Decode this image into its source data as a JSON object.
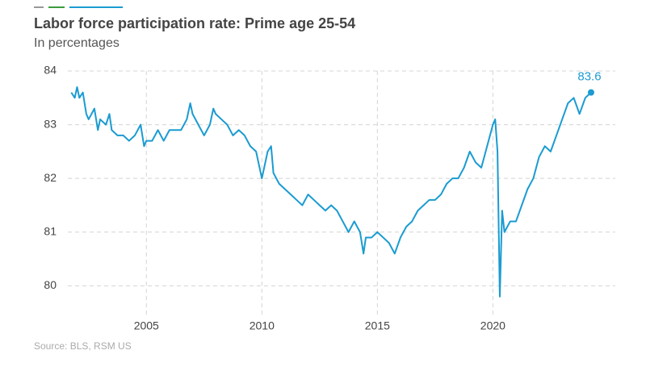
{
  "chart_data": {
    "type": "line",
    "title": "Labor force participation rate: Prime age 25-54",
    "subtitle": "In percentages",
    "source": "Source: BLS, RSM US",
    "x": [
      2001.75,
      2001.9,
      2002.0,
      2002.1,
      2002.25,
      2002.4,
      2002.5,
      2002.75,
      2002.9,
      2003.0,
      2003.25,
      2003.4,
      2003.5,
      2003.75,
      2004.0,
      2004.25,
      2004.5,
      2004.75,
      2004.9,
      2005.0,
      2005.25,
      2005.5,
      2005.75,
      2006.0,
      2006.25,
      2006.5,
      2006.75,
      2006.9,
      2007.0,
      2007.25,
      2007.5,
      2007.75,
      2007.9,
      2008.0,
      2008.25,
      2008.5,
      2008.75,
      2009.0,
      2009.25,
      2009.5,
      2009.75,
      2010.0,
      2010.25,
      2010.4,
      2010.5,
      2010.75,
      2011.0,
      2011.25,
      2011.5,
      2011.75,
      2012.0,
      2012.25,
      2012.5,
      2012.75,
      2013.0,
      2013.25,
      2013.5,
      2013.75,
      2014.0,
      2014.25,
      2014.4,
      2014.5,
      2014.75,
      2015.0,
      2015.25,
      2015.5,
      2015.75,
      2016.0,
      2016.25,
      2016.5,
      2016.75,
      2017.0,
      2017.25,
      2017.5,
      2017.75,
      2018.0,
      2018.25,
      2018.5,
      2018.75,
      2019.0,
      2019.25,
      2019.5,
      2019.75,
      2020.0,
      2020.1,
      2020.2,
      2020.3,
      2020.4,
      2020.5,
      2020.75,
      2021.0,
      2021.25,
      2021.5,
      2021.75,
      2022.0,
      2022.25,
      2022.5,
      2022.75,
      2023.0,
      2023.25,
      2023.5,
      2023.75,
      2024.0,
      2024.25
    ],
    "series": [
      {
        "color": "#1a9bd1",
        "values": [
          83.6,
          83.5,
          83.7,
          83.5,
          83.6,
          83.2,
          83.1,
          83.3,
          82.9,
          83.1,
          83.0,
          83.2,
          82.9,
          82.8,
          82.8,
          82.7,
          82.8,
          83.0,
          82.6,
          82.7,
          82.7,
          82.9,
          82.7,
          82.9,
          82.9,
          82.9,
          83.1,
          83.4,
          83.2,
          83.0,
          82.8,
          83.0,
          83.3,
          83.2,
          83.1,
          83.0,
          82.8,
          82.9,
          82.8,
          82.6,
          82.5,
          82.0,
          82.5,
          82.6,
          82.1,
          81.9,
          81.8,
          81.7,
          81.6,
          81.5,
          81.7,
          81.6,
          81.5,
          81.4,
          81.5,
          81.4,
          81.2,
          81.0,
          81.2,
          81.0,
          80.6,
          80.9,
          80.9,
          81.0,
          80.9,
          80.8,
          80.6,
          80.9,
          81.1,
          81.2,
          81.4,
          81.5,
          81.6,
          81.6,
          81.7,
          81.9,
          82.0,
          82.0,
          82.2,
          82.5,
          82.3,
          82.2,
          82.6,
          83.0,
          83.1,
          82.5,
          79.8,
          81.4,
          81.0,
          81.2,
          81.2,
          81.5,
          81.8,
          82.0,
          82.4,
          82.6,
          82.5,
          82.8,
          83.1,
          83.4,
          83.5,
          83.2,
          83.5,
          83.6
        ]
      }
    ],
    "xlim": [
      2001.6,
      2025.3
    ],
    "xticks": [
      2005,
      2010,
      2015,
      2020
    ],
    "ylim": [
      79.45,
      84
    ],
    "yticks": [
      80,
      81,
      82,
      83,
      84
    ],
    "grid": true
  }
}
